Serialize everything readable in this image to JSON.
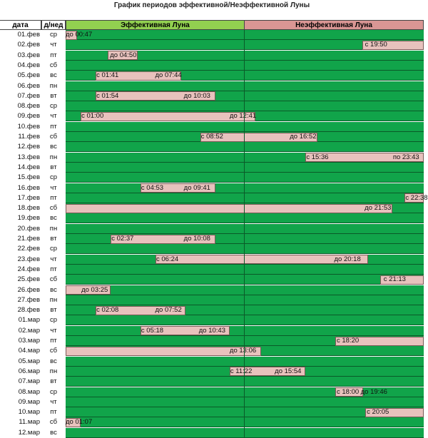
{
  "title": "График  периодов эффективной/Неэффективной Луны",
  "headers": {
    "date": "дата",
    "dow": "д/нед",
    "effective": "Эффективная Луна",
    "ineffective": "Неэффективная Луна"
  },
  "colors": {
    "effective_header": "#92d050",
    "ineffective_header": "#da9694",
    "green": "#11a44a",
    "pink": "#e8c2bd"
  },
  "chart_data": {
    "type": "table",
    "rows": [
      {
        "date": "01.фев",
        "dow": "ср",
        "segments": [
          {
            "start": 0,
            "end": 0.0326,
            "labels": [
              {
                "text": "до 00:47",
                "at": 0
              }
            ]
          }
        ]
      },
      {
        "date": "02.фев",
        "dow": "чт",
        "segments": [
          {
            "start": 0.828,
            "end": 1.0,
            "labels": [
              {
                "text": "с 19:50",
                "at": 0.836
              }
            ]
          }
        ]
      },
      {
        "date": "03.фев",
        "dow": "пт",
        "segments": [
          {
            "start": 0.117,
            "end": 0.201,
            "labels": [
              {
                "text": "до 04:50",
                "at": 0.124
              }
            ]
          }
        ]
      },
      {
        "date": "04.фев",
        "dow": "сб",
        "segments": []
      },
      {
        "date": "05.фев",
        "dow": "вс",
        "segments": [
          {
            "start": 0.084,
            "end": 0.322,
            "labels": [
              {
                "text": "с 01:41",
                "at": 0.086
              },
              {
                "text": "до 07:44",
                "at": 0.25
              }
            ]
          }
        ]
      },
      {
        "date": "06.фев",
        "dow": "пн",
        "segments": []
      },
      {
        "date": "07.фев",
        "dow": "вт",
        "segments": [
          {
            "start": 0.084,
            "end": 0.418,
            "labels": [
              {
                "text": "с 01:54",
                "at": 0.086
              },
              {
                "text": "до 10:03",
                "at": 0.33
              }
            ]
          }
        ]
      },
      {
        "date": "08.фев",
        "dow": "ср",
        "segments": []
      },
      {
        "date": "09.фев",
        "dow": "чт",
        "segments": [
          {
            "start": 0.042,
            "end": 0.53,
            "labels": [
              {
                "text": "с 01:00",
                "at": 0.044
              },
              {
                "text": "до 12:41",
                "at": 0.458
              }
            ]
          }
        ]
      },
      {
        "date": "10.фев",
        "dow": "пт",
        "segments": []
      },
      {
        "date": "11.фев",
        "dow": "сб",
        "segments": [
          {
            "start": 0.376,
            "end": 0.704,
            "labels": [
              {
                "text": "с 08:52",
                "at": 0.378
              },
              {
                "text": "до 16:52",
                "at": 0.626
              }
            ]
          }
        ]
      },
      {
        "date": "12.фев",
        "dow": "вс",
        "segments": []
      },
      {
        "date": "13.фев",
        "dow": "пн",
        "segments": [
          {
            "start": 0.67,
            "end": 1.0,
            "labels": [
              {
                "text": "с 15:36",
                "at": 0.672
              },
              {
                "text": "по 23:43",
                "at": 0.914
              }
            ]
          }
        ]
      },
      {
        "date": "14.фев",
        "dow": "вт",
        "segments": []
      },
      {
        "date": "15.фев",
        "dow": "ср",
        "segments": []
      },
      {
        "date": "16.фев",
        "dow": "чт",
        "segments": [
          {
            "start": 0.209,
            "end": 0.418,
            "labels": [
              {
                "text": "с 04:53",
                "at": 0.211
              },
              {
                "text": "до 09:41",
                "at": 0.33
              }
            ]
          }
        ]
      },
      {
        "date": "17.фев",
        "dow": "пт",
        "segments": [
          {
            "start": 0.947,
            "end": 1.0,
            "labels": [
              {
                "text": "с 22:38",
                "at": 0.949
              }
            ]
          }
        ]
      },
      {
        "date": "18.фев",
        "dow": "сб",
        "segments": [
          {
            "start": 0,
            "end": 0.912,
            "labels": [
              {
                "text": "до 21:53",
                "at": 0.835
              }
            ]
          }
        ]
      },
      {
        "date": "19.фев",
        "dow": "вс",
        "segments": []
      },
      {
        "date": "20.фев",
        "dow": "пн",
        "segments": []
      },
      {
        "date": "21.фев",
        "dow": "вт",
        "segments": [
          {
            "start": 0.126,
            "end": 0.418,
            "labels": [
              {
                "text": "с 02:37",
                "at": 0.128
              },
              {
                "text": "до 10:08",
                "at": 0.33
              }
            ]
          }
        ]
      },
      {
        "date": "22.фев",
        "dow": "ср",
        "segments": []
      },
      {
        "date": "23.фев",
        "dow": "чт",
        "segments": [
          {
            "start": 0.251,
            "end": 0.845,
            "labels": [
              {
                "text": "с 06:24",
                "at": 0.253
              },
              {
                "text": "до 20:18",
                "at": 0.75
              }
            ]
          }
        ]
      },
      {
        "date": "24.фев",
        "dow": "пт",
        "segments": []
      },
      {
        "date": "25.фев",
        "dow": "сб",
        "segments": [
          {
            "start": 0.878,
            "end": 1.0,
            "labels": [
              {
                "text": "с 21:13",
                "at": 0.888
              }
            ]
          }
        ]
      },
      {
        "date": "26.фев",
        "dow": "вс",
        "segments": [
          {
            "start": 0,
            "end": 0.125,
            "labels": [
              {
                "text": "до 03:25",
                "at": 0.044
              }
            ]
          }
        ]
      },
      {
        "date": "27.фев",
        "dow": "пн",
        "segments": []
      },
      {
        "date": "28.фев",
        "dow": "вт",
        "segments": [
          {
            "start": 0.084,
            "end": 0.334,
            "labels": [
              {
                "text": "с 02:08",
                "at": 0.086
              },
              {
                "text": "до 07:52",
                "at": 0.25
              }
            ]
          }
        ]
      },
      {
        "date": "01.мар",
        "dow": "ср",
        "segments": []
      },
      {
        "date": "02.мар",
        "dow": "чт",
        "segments": [
          {
            "start": 0.209,
            "end": 0.459,
            "labels": [
              {
                "text": "с 05:18",
                "at": 0.211
              },
              {
                "text": "до 10:43",
                "at": 0.372
              }
            ]
          }
        ]
      },
      {
        "date": "03.мар",
        "dow": "пт",
        "segments": [
          {
            "start": 0.753,
            "end": 1.0,
            "labels": [
              {
                "text": "с 18:20",
                "at": 0.757
              }
            ]
          }
        ]
      },
      {
        "date": "04.мар",
        "dow": "сб",
        "segments": [
          {
            "start": 0,
            "end": 0.545,
            "labels": [
              {
                "text": "до 13:06",
                "at": 0.458
              }
            ]
          }
        ]
      },
      {
        "date": "05.мар",
        "dow": "вс",
        "segments": []
      },
      {
        "date": "06.мар",
        "dow": "пн",
        "segments": [
          {
            "start": 0.458,
            "end": 0.669,
            "labels": [
              {
                "text": "с 11:22",
                "at": 0.46
              },
              {
                "text": "до 15:54",
                "at": 0.584
              }
            ]
          }
        ]
      },
      {
        "date": "07.мар",
        "dow": "вт",
        "segments": []
      },
      {
        "date": "08.мар",
        "dow": "ср",
        "segments": [
          {
            "start": 0.753,
            "end": 0.83,
            "labels": [
              {
                "text": "с 18:00",
                "at": 0.757
              },
              {
                "text": "до 19:46",
                "at": 0.824
              }
            ]
          }
        ]
      },
      {
        "date": "09.мар",
        "dow": "чт",
        "segments": []
      },
      {
        "date": "10.мар",
        "dow": "пт",
        "segments": [
          {
            "start": 0.837,
            "end": 1.0,
            "labels": [
              {
                "text": "с 20:05",
                "at": 0.841
              }
            ]
          }
        ]
      },
      {
        "date": "11.мар",
        "dow": "сб",
        "segments": [
          {
            "start": 0,
            "end": 0.042,
            "labels": [
              {
                "text": "до 01:07",
                "at": 0
              }
            ]
          }
        ]
      },
      {
        "date": "12.мар",
        "dow": "вс",
        "segments": []
      }
    ]
  }
}
